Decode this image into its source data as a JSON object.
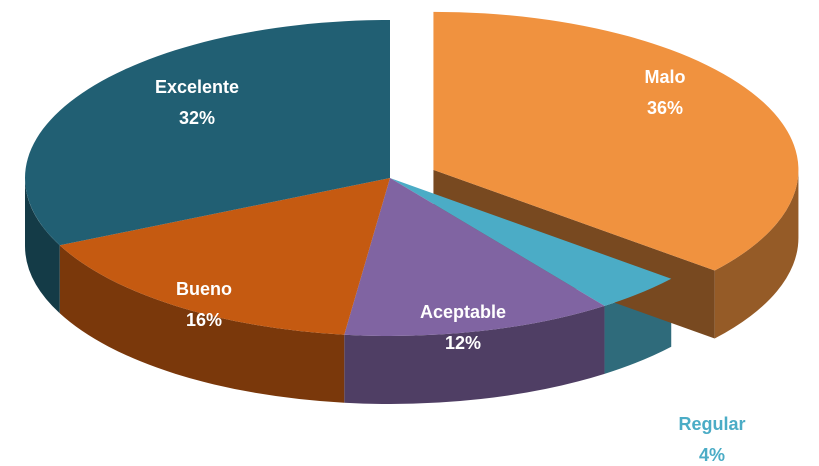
{
  "chart_data": {
    "type": "pie",
    "categories": [
      "Malo",
      "Regular",
      "Aceptable",
      "Bueno",
      "Excelente"
    ],
    "values": [
      36,
      4,
      12,
      16,
      32
    ],
    "value_labels": [
      "36%",
      "4%",
      "12%",
      "16%",
      "32%"
    ],
    "colors": [
      "#f0923f",
      "#4bacc6",
      "#8064a2",
      "#c55a11",
      "#215f73"
    ]
  }
}
